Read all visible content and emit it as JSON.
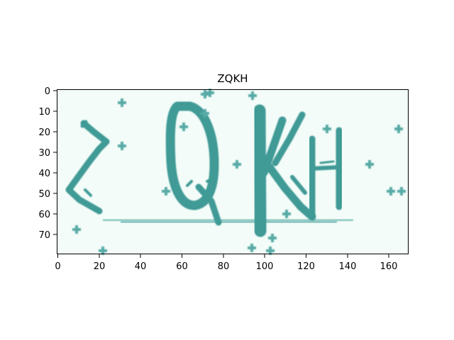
{
  "plot": {
    "title": "ZQKH",
    "image_caption_letters": "ZQKH",
    "x_ticks": [
      "0",
      "20",
      "40",
      "60",
      "80",
      "100",
      "120",
      "140",
      "160"
    ],
    "y_ticks": [
      "0",
      "10",
      "20",
      "30",
      "40",
      "50",
      "60",
      "70"
    ],
    "colors": {
      "background": "#f3fcf8",
      "ink": "#3f9a96",
      "ink_light": "#8cc7c2",
      "noise": "#58aaa6"
    },
    "image_extent": {
      "x": [
        0,
        170
      ],
      "y": [
        80,
        0
      ]
    }
  }
}
